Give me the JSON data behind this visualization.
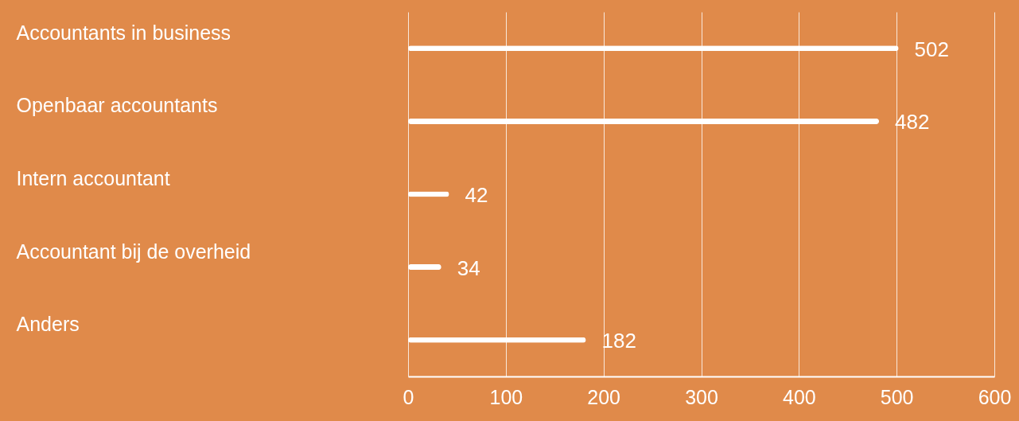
{
  "chart_data": {
    "type": "bar",
    "orientation": "horizontal",
    "categories": [
      "Accountants in business",
      "Openbaar accountants",
      "Intern accountant",
      "Accountant bij de overheid",
      "Anders"
    ],
    "values": [
      502,
      482,
      42,
      34,
      182
    ],
    "color": "#ffffff",
    "xlim": [
      0,
      600
    ],
    "xticks": [
      0,
      100,
      200,
      300,
      400,
      500,
      600
    ],
    "grid": "x",
    "data_labels": true
  }
}
